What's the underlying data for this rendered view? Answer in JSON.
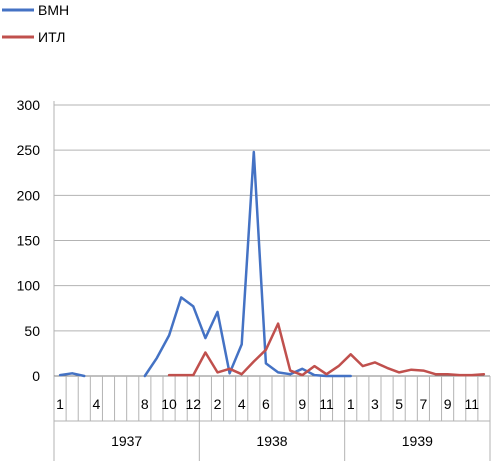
{
  "chart_data": {
    "type": "line",
    "title": "",
    "xlabel": "",
    "ylabel": "",
    "ylim": [
      0,
      300
    ],
    "yticks": [
      "0",
      "50",
      "100",
      "150",
      "200",
      "250",
      "300"
    ],
    "grid": "horizontal",
    "legend_position": "top-left",
    "x_labels": [
      "1",
      "",
      "",
      "4",
      "",
      "",
      "",
      "8",
      "",
      "10",
      "",
      "12",
      "",
      "2",
      "",
      "4",
      "",
      "6",
      "",
      "",
      "9",
      "",
      "11",
      "",
      "1",
      "",
      "3",
      "",
      "5",
      "",
      "7",
      "",
      "9",
      "",
      "11",
      ""
    ],
    "years": [
      {
        "label": "1937",
        "start": 0,
        "end": 12
      },
      {
        "label": "1938",
        "start": 12,
        "end": 24
      },
      {
        "label": "1939",
        "start": 24,
        "end": 36
      }
    ],
    "series": [
      {
        "name": "ВМН",
        "color": "#4472C4",
        "values": [
          1,
          3,
          0,
          null,
          null,
          null,
          null,
          0,
          20,
          45,
          87,
          77,
          42,
          71,
          3,
          35,
          248,
          14,
          4,
          2,
          8,
          1,
          0,
          0,
          0,
          null,
          null,
          null,
          null,
          null,
          null,
          null,
          null,
          null,
          null,
          null
        ]
      },
      {
        "name": "ИТЛ",
        "color": "#C0504D",
        "values": [
          null,
          null,
          null,
          null,
          null,
          null,
          null,
          null,
          null,
          1,
          1,
          1,
          26,
          4,
          8,
          2,
          16,
          29,
          58,
          6,
          1,
          11,
          2,
          11,
          24,
          11,
          15,
          9,
          4,
          7,
          6,
          2,
          2,
          1,
          1,
          2
        ]
      }
    ]
  }
}
